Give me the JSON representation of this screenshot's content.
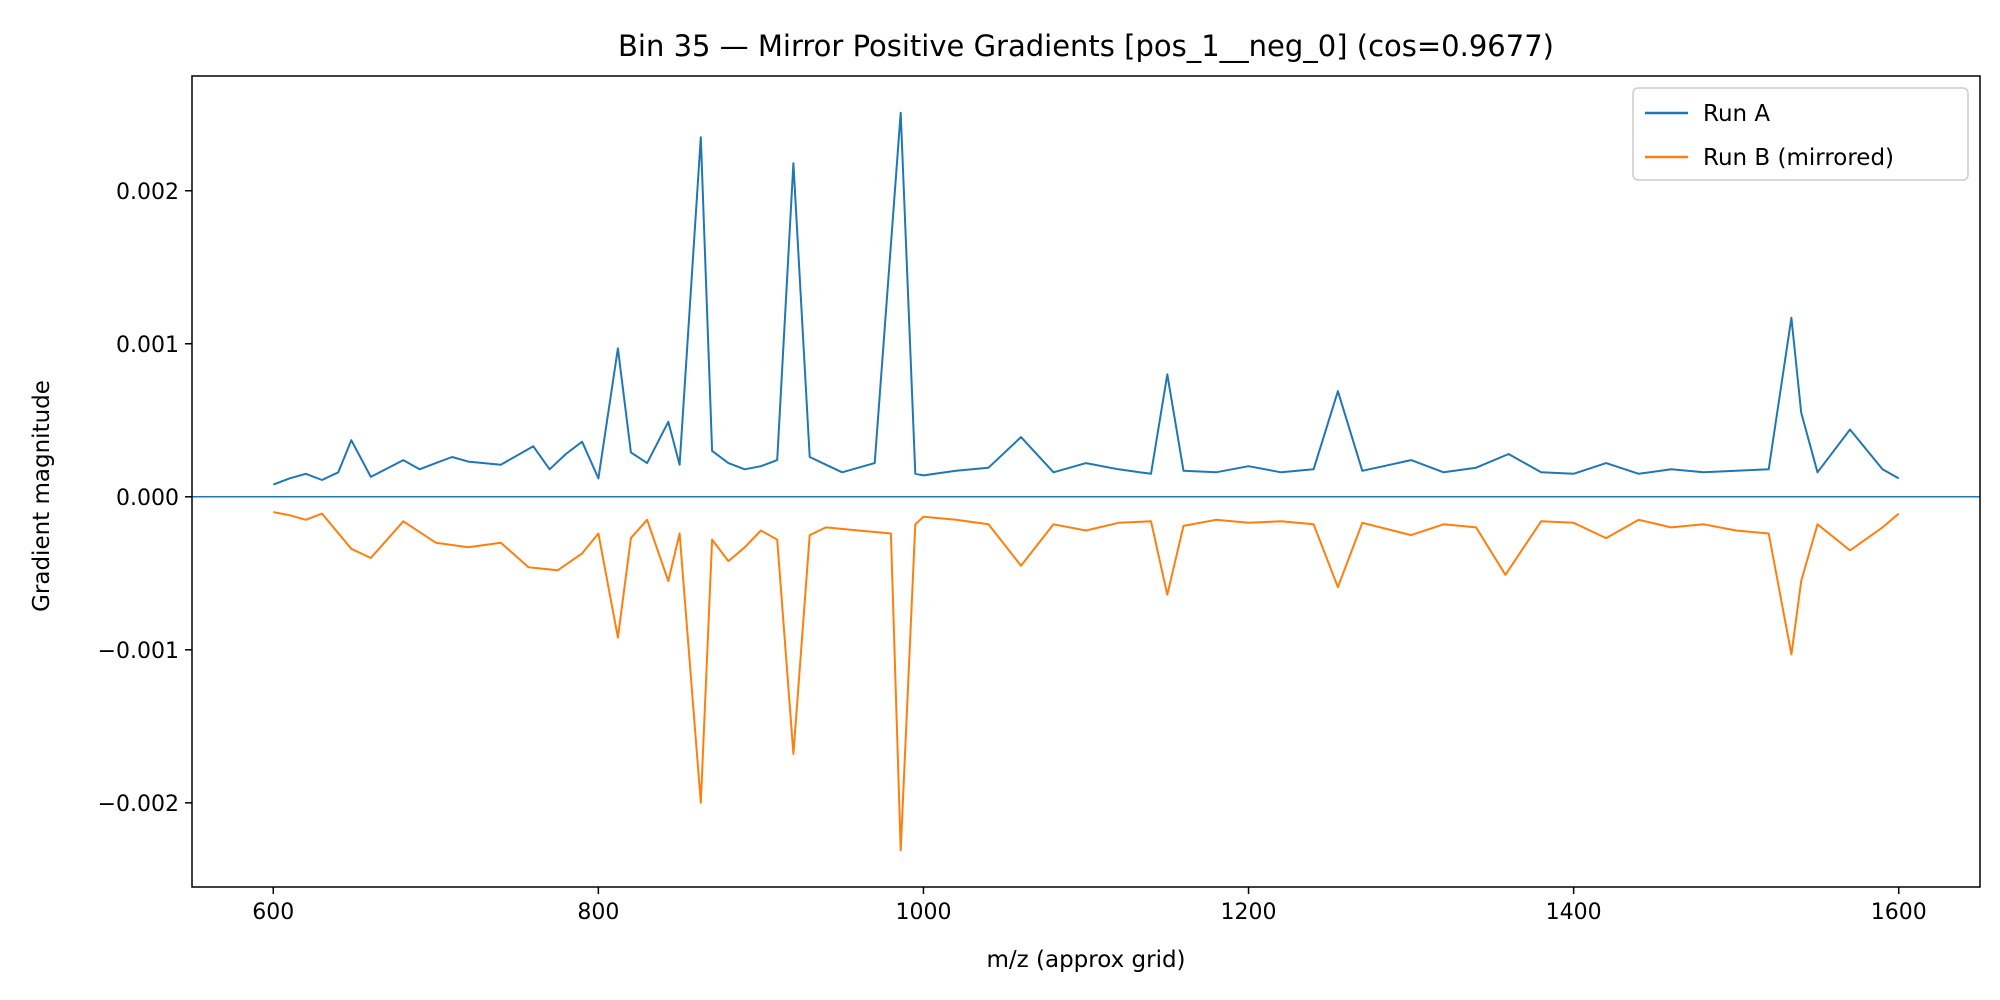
{
  "chart_data": {
    "type": "line",
    "title": "Bin 35 — Mirror Positive Gradients [pos_1__neg_0] (cos=0.9677)",
    "xlabel": "m/z (approx grid)",
    "ylabel": "Gradient magnitude",
    "xlim": [
      550,
      1650
    ],
    "ylim": [
      -0.00255,
      0.00275
    ],
    "x_ticks": [
      600,
      800,
      1000,
      1200,
      1400,
      1600
    ],
    "x_tick_labels": [
      "600",
      "800",
      "1000",
      "1200",
      "1400",
      "1600"
    ],
    "y_ticks": [
      -0.002,
      -0.001,
      0.0,
      0.001,
      0.002
    ],
    "y_tick_labels": [
      "−0.002",
      "−0.001",
      "0.000",
      "0.001",
      "0.002"
    ],
    "zero_line": true,
    "grid": false,
    "legend_position": "top-right",
    "series": [
      {
        "name": "Run A",
        "color": "#1f77b4",
        "x": [
          600,
          610,
          620,
          630,
          640,
          648,
          660,
          680,
          690,
          700,
          710,
          720,
          740,
          760,
          770,
          780,
          790,
          800,
          812,
          820,
          830,
          843,
          850,
          863,
          870,
          880,
          890,
          900,
          910,
          920,
          930,
          940,
          950,
          960,
          970,
          986,
          995,
          1000,
          1020,
          1040,
          1060,
          1080,
          1100,
          1120,
          1140,
          1150,
          1160,
          1180,
          1200,
          1220,
          1240,
          1255,
          1270,
          1300,
          1320,
          1340,
          1360,
          1380,
          1400,
          1420,
          1440,
          1460,
          1480,
          1500,
          1520,
          1534,
          1540,
          1550,
          1570,
          1590,
          1600
        ],
        "y": [
          8e-05,
          0.00012,
          0.00015,
          0.00011,
          0.00016,
          0.00037,
          0.00013,
          0.00024,
          0.00018,
          0.00022,
          0.00026,
          0.00023,
          0.00021,
          0.00033,
          0.00018,
          0.00028,
          0.00036,
          0.00012,
          0.00097,
          0.00029,
          0.00022,
          0.00049,
          0.00021,
          0.00235,
          0.0003,
          0.00022,
          0.00018,
          0.0002,
          0.00024,
          0.00218,
          0.00026,
          0.00021,
          0.00016,
          0.00019,
          0.00022,
          0.00251,
          0.00015,
          0.00014,
          0.00017,
          0.00019,
          0.00039,
          0.00016,
          0.00022,
          0.00018,
          0.00015,
          0.0008,
          0.00017,
          0.00016,
          0.0002,
          0.00016,
          0.00018,
          0.00069,
          0.00017,
          0.00024,
          0.00016,
          0.00019,
          0.00028,
          0.00016,
          0.00015,
          0.00022,
          0.00015,
          0.00018,
          0.00016,
          0.00017,
          0.00018,
          0.00117,
          0.00055,
          0.00016,
          0.00044,
          0.00018,
          0.00012
        ]
      },
      {
        "name": "Run B (mirrored)",
        "color": "#ff7f0e",
        "x": [
          600,
          610,
          620,
          630,
          648,
          660,
          680,
          700,
          720,
          740,
          757,
          775,
          790,
          800,
          812,
          820,
          830,
          843,
          850,
          863,
          870,
          880,
          890,
          900,
          910,
          920,
          930,
          940,
          960,
          980,
          986,
          995,
          1000,
          1020,
          1040,
          1060,
          1080,
          1100,
          1120,
          1140,
          1150,
          1160,
          1180,
          1200,
          1220,
          1240,
          1255,
          1270,
          1300,
          1320,
          1340,
          1358,
          1380,
          1400,
          1420,
          1440,
          1460,
          1480,
          1500,
          1520,
          1534,
          1540,
          1550,
          1570,
          1590,
          1600
        ],
        "y": [
          -0.0001,
          -0.00012,
          -0.00015,
          -0.00011,
          -0.00034,
          -0.0004,
          -0.00016,
          -0.0003,
          -0.00033,
          -0.0003,
          -0.00046,
          -0.00048,
          -0.00037,
          -0.00024,
          -0.00092,
          -0.00027,
          -0.00015,
          -0.00055,
          -0.00024,
          -0.002,
          -0.00028,
          -0.00042,
          -0.00033,
          -0.00022,
          -0.00028,
          -0.00168,
          -0.00025,
          -0.0002,
          -0.00022,
          -0.00024,
          -0.00231,
          -0.00018,
          -0.00013,
          -0.00015,
          -0.00018,
          -0.00045,
          -0.00018,
          -0.00022,
          -0.00017,
          -0.00016,
          -0.00064,
          -0.00019,
          -0.00015,
          -0.00017,
          -0.00016,
          -0.00018,
          -0.00059,
          -0.00017,
          -0.00025,
          -0.00018,
          -0.0002,
          -0.00051,
          -0.00016,
          -0.00017,
          -0.00027,
          -0.00015,
          -0.0002,
          -0.00018,
          -0.00022,
          -0.00024,
          -0.00103,
          -0.00055,
          -0.00018,
          -0.00035,
          -0.0002,
          -0.00011
        ]
      }
    ]
  }
}
